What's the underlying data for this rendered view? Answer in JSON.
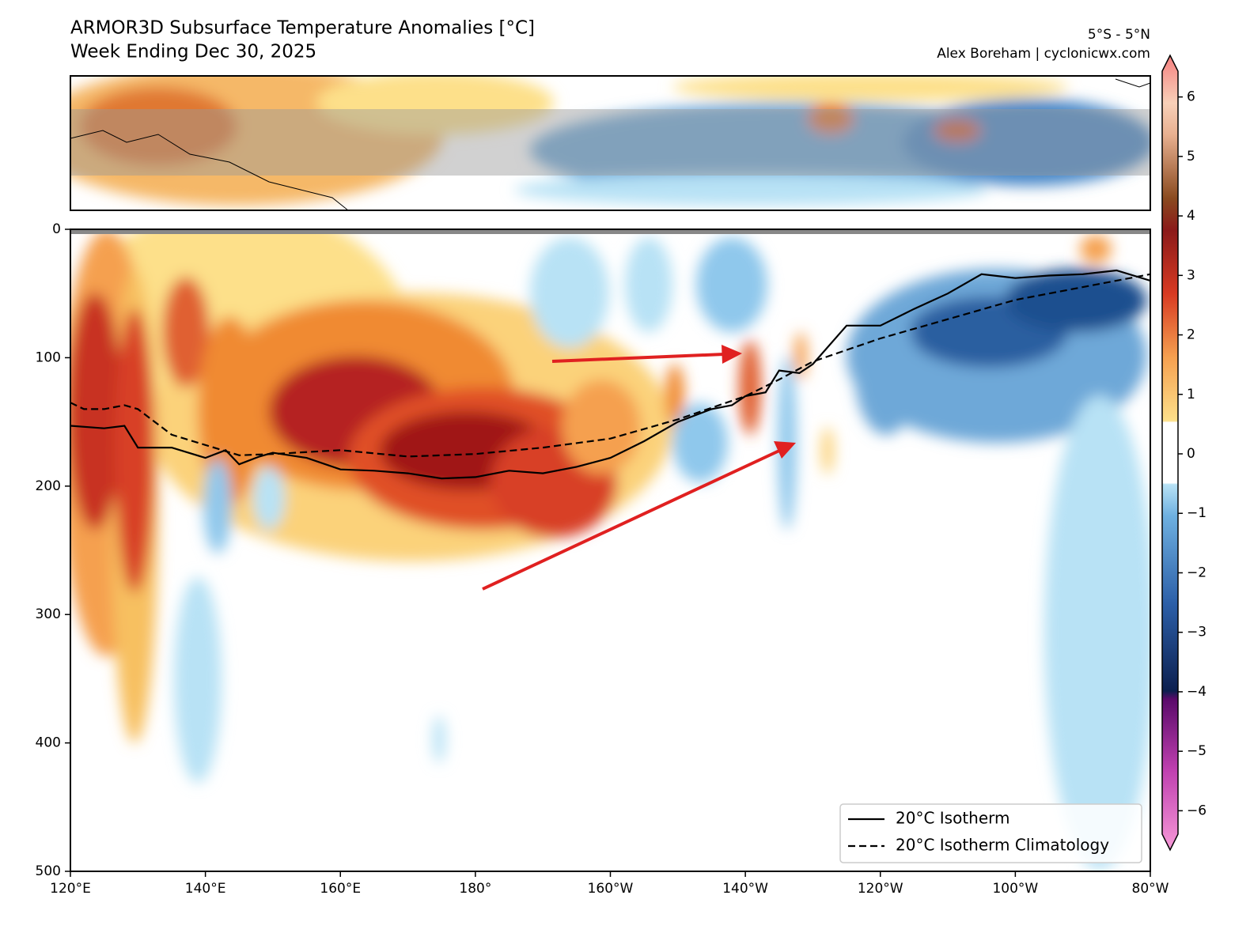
{
  "chart_data": {
    "type": "contour",
    "title": "ARMOR3D Subsurface Temperature Anomalies [°C]",
    "subtitle": "Week Ending Dec 30, 2025",
    "annotations": [
      "5°S - 5°N",
      "Alex Boreham | cyclonicwx.com"
    ],
    "xlim": [
      120,
      280
    ],
    "xticks": [
      {
        "value": 120,
        "label": "120°E"
      },
      {
        "value": 140,
        "label": "140°E"
      },
      {
        "value": 160,
        "label": "160°E"
      },
      {
        "value": 180,
        "label": "180°"
      },
      {
        "value": 200,
        "label": "160°W"
      },
      {
        "value": 220,
        "label": "140°W"
      },
      {
        "value": 240,
        "label": "120°W"
      },
      {
        "value": 260,
        "label": "100°W"
      },
      {
        "value": 280,
        "label": "80°W"
      }
    ],
    "ylim": [
      500,
      0
    ],
    "yticks": [
      0,
      100,
      200,
      300,
      400,
      500
    ],
    "series": [
      {
        "name": "20°C Isotherm",
        "color": "#000000",
        "style": "solid",
        "x": [
          120,
          125,
          128,
          130,
          135,
          140,
          143,
          145,
          148,
          150,
          155,
          160,
          165,
          170,
          175,
          180,
          185,
          190,
          195,
          200,
          205,
          210,
          215,
          218,
          220,
          223,
          225,
          228,
          230,
          235,
          240,
          245,
          250,
          255,
          260,
          265,
          270,
          275,
          280
        ],
        "values": [
          153,
          155,
          153,
          170,
          170,
          178,
          172,
          183,
          177,
          174,
          178,
          187,
          188,
          190,
          194,
          193,
          188,
          190,
          185,
          178,
          165,
          150,
          140,
          137,
          130,
          127,
          110,
          112,
          105,
          75,
          75,
          62,
          50,
          35,
          38,
          36,
          35,
          32,
          40
        ]
      },
      {
        "name": "20°C Isotherm Climatology",
        "color": "#000000",
        "style": "dashed",
        "x": [
          120,
          122,
          125,
          128,
          130,
          135,
          140,
          145,
          150,
          160,
          170,
          180,
          190,
          200,
          210,
          220,
          225,
          230,
          240,
          250,
          260,
          270,
          280
        ],
        "values": [
          135,
          140,
          140,
          137,
          140,
          160,
          168,
          176,
          175,
          172,
          177,
          175,
          170,
          163,
          148,
          130,
          117,
          103,
          85,
          70,
          55,
          45,
          35
        ]
      }
    ],
    "legend": "lower right",
    "colorbar": {
      "lim": [
        -6.5,
        6.5
      ],
      "ticks": [
        {
          "value": -6,
          "label": "−6"
        },
        {
          "value": -5,
          "label": "−5"
        },
        {
          "value": -4,
          "label": "−4"
        },
        {
          "value": -3,
          "label": "−3"
        },
        {
          "value": -2,
          "label": "−2"
        },
        {
          "value": -1,
          "label": "−1"
        },
        0,
        1,
        2,
        3,
        4,
        5,
        6
      ]
    }
  }
}
